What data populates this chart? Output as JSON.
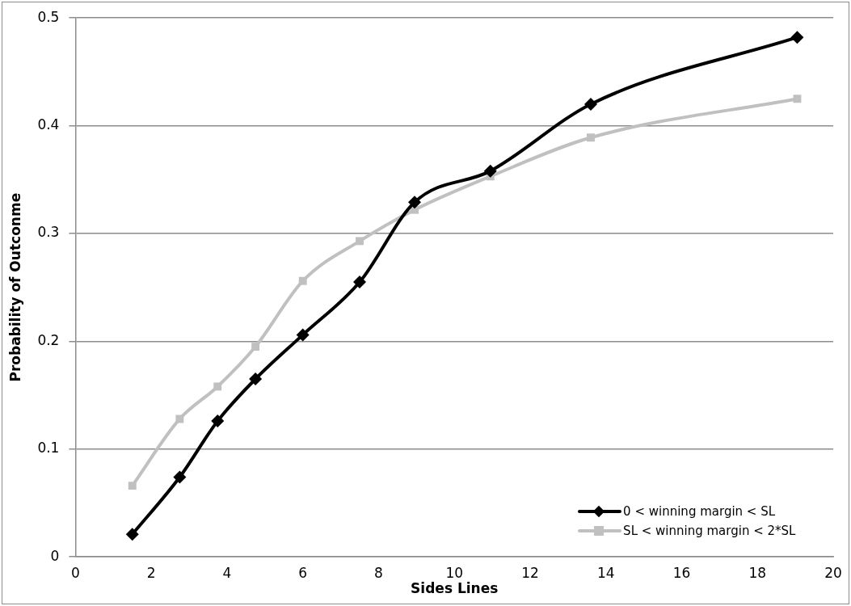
{
  "chart_data": {
    "type": "line",
    "xlabel": "Sides Lines",
    "ylabel": "Probability of Outconme",
    "xlim": [
      0,
      20
    ],
    "xticks": [
      0,
      2,
      4,
      6,
      8,
      10,
      12,
      14,
      16,
      18,
      20
    ],
    "ylim": [
      0,
      0.5
    ],
    "yticks": [
      0,
      0.1,
      0.2,
      0.3,
      0.4,
      0.5
    ],
    "grid": "y",
    "legend": "bottom right",
    "line_style": "solid",
    "series": [
      {
        "name": "0 < winning margin < SL",
        "color": "#000000",
        "marker": "diamond",
        "x": [
          1.5,
          2.75,
          3.75,
          4.75,
          6,
          7.5,
          8.95,
          10.95,
          13.6,
          19.05
        ],
        "values": [
          0.021,
          0.074,
          0.126,
          0.165,
          0.206,
          0.255,
          0.329,
          0.358,
          0.42,
          0.482
        ]
      },
      {
        "name": "SL < winning margin < 2*SL",
        "color": "#c0c0c0",
        "marker": "square",
        "x": [
          1.5,
          2.75,
          3.75,
          4.75,
          6,
          7.5,
          8.95,
          10.95,
          13.6,
          19.05
        ],
        "values": [
          0.066,
          0.128,
          0.158,
          0.195,
          0.256,
          0.293,
          0.322,
          0.353,
          0.389,
          0.425
        ]
      }
    ]
  }
}
